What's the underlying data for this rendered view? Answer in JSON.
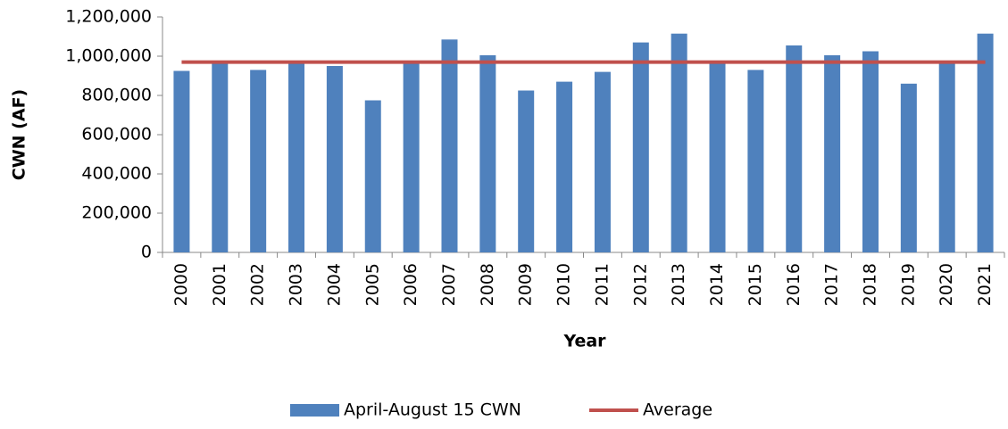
{
  "chart_data": {
    "type": "bar",
    "x_label": "Year",
    "y_label": "CWN (AF)",
    "categories": [
      "2000",
      "2001",
      "2002",
      "2003",
      "2004",
      "2005",
      "2006",
      "2007",
      "2008",
      "2009",
      "2010",
      "2011",
      "2012",
      "2013",
      "2014",
      "2015",
      "2016",
      "2017",
      "2018",
      "2019",
      "2020",
      "2021"
    ],
    "series": [
      {
        "name": "April-August 15 CWN",
        "type": "bar",
        "color": "#4f81bd",
        "values": [
          925000,
          975000,
          930000,
          975000,
          950000,
          775000,
          975000,
          1085000,
          1005000,
          825000,
          870000,
          920000,
          1070000,
          1115000,
          975000,
          930000,
          1055000,
          1005000,
          1025000,
          860000,
          975000,
          1115000
        ]
      },
      {
        "name": "Average",
        "type": "line",
        "color": "#c0504d",
        "values": [
          970000,
          970000,
          970000,
          970000,
          970000,
          970000,
          970000,
          970000,
          970000,
          970000,
          970000,
          970000,
          970000,
          970000,
          970000,
          970000,
          970000,
          970000,
          970000,
          970000,
          970000,
          970000
        ]
      }
    ],
    "ylim": [
      0,
      1200000
    ],
    "yticks": [
      0,
      {
        "value": 200000,
        "label": "200,000"
      },
      {
        "value": 400000,
        "label": "400,000"
      },
      {
        "value": 600000,
        "label": "600,000"
      },
      {
        "value": 800000,
        "label": "800,000"
      },
      {
        "value": 1000000,
        "label": "1,000,000"
      },
      {
        "value": 1200000,
        "label": "1,200,000"
      }
    ],
    "grid": false,
    "legend": "bottom"
  }
}
